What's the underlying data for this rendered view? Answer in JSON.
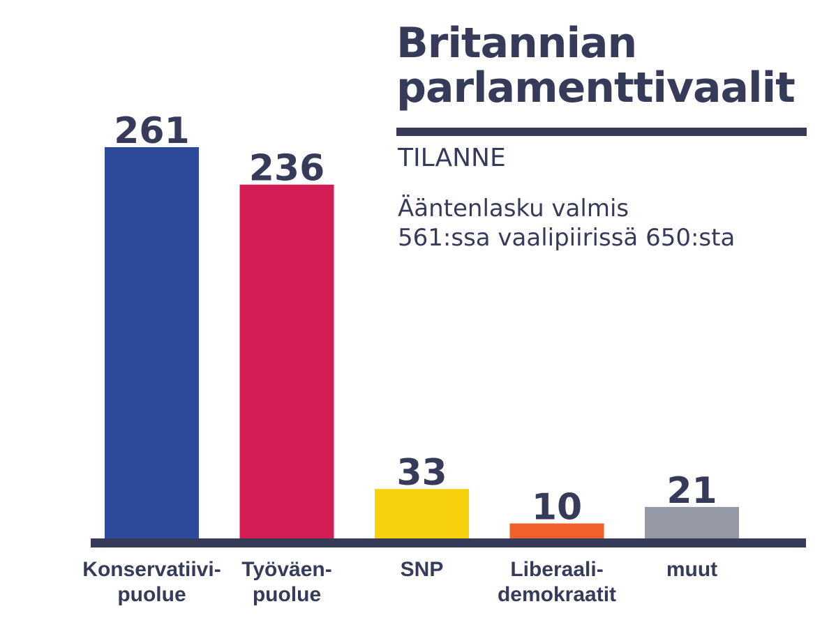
{
  "header": {
    "title_line1": "Britannian",
    "title_line2": "parlamenttivaalit",
    "subtitle": "TILANNE",
    "note_line1": "Ääntenlasku valmis",
    "note_line2": "561:ssa vaalipiirissä 650:sta"
  },
  "chart_data": {
    "type": "bar",
    "title": "Britannian parlamenttivaalit",
    "subtitle": "TILANNE",
    "annotation": "Ääntenlasku valmis 561:ssa vaalipiirissä 650:sta",
    "categories": [
      [
        "Konservatiivi-",
        "puolue"
      ],
      [
        "Työväen-",
        "puolue"
      ],
      [
        "SNP"
      ],
      [
        "Liberaali-",
        "demokraatit"
      ],
      [
        "muut"
      ]
    ],
    "values": [
      261,
      236,
      33,
      10,
      21
    ],
    "colors": [
      "#2e4a9b",
      "#d41d54",
      "#f7d10c",
      "#f0602a",
      "#9599a5"
    ],
    "value_labels": [
      "261",
      "236",
      "33",
      "10",
      "21"
    ],
    "ylim": [
      0,
      261
    ],
    "grid": false,
    "legend": "none",
    "axis_color": "#363b5a"
  }
}
